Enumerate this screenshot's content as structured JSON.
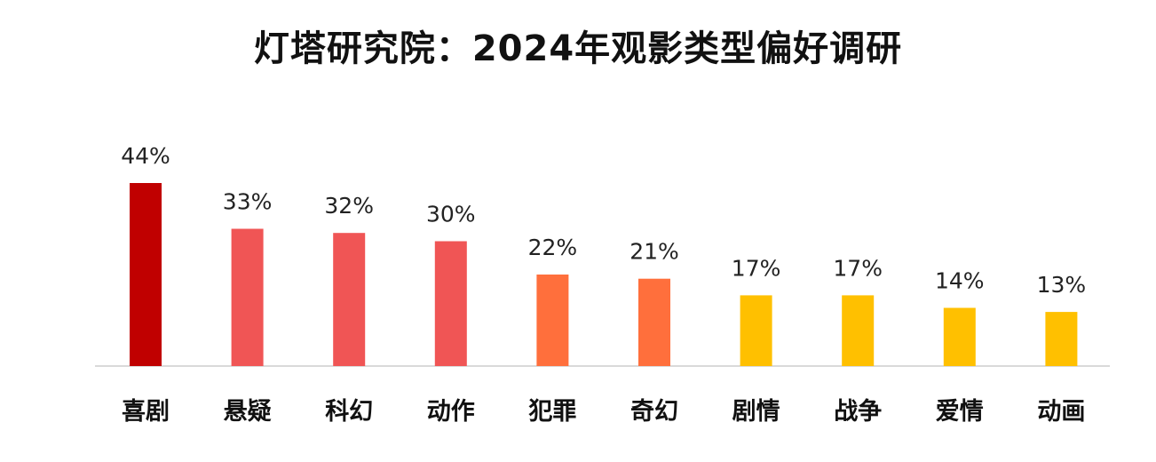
{
  "title": "灯塔研究院：2024年观影类型偏好调研",
  "chart_data": {
    "type": "bar",
    "title": "灯塔研究院：2024年观影类型偏好调研",
    "categories": [
      "喜剧",
      "悬疑",
      "科幻",
      "动作",
      "犯罪",
      "奇幻",
      "剧情",
      "战争",
      "爱情",
      "动画"
    ],
    "values": [
      44,
      33,
      32,
      30,
      22,
      21,
      17,
      17,
      14,
      13
    ],
    "value_labels": [
      "44%",
      "33%",
      "32%",
      "30%",
      "22%",
      "21%",
      "17%",
      "17%",
      "14%",
      "13%"
    ],
    "bar_colors": [
      "#c00000",
      "#f05555",
      "#f05555",
      "#f05555",
      "#ff6f3c",
      "#ff6f3c",
      "#ffc000",
      "#ffc000",
      "#ffc000",
      "#ffc000"
    ],
    "axis_color": "#d9d9d9",
    "xlabel": "",
    "ylabel": "",
    "ylim": [
      0,
      44
    ],
    "grid": false,
    "legend": "none"
  }
}
